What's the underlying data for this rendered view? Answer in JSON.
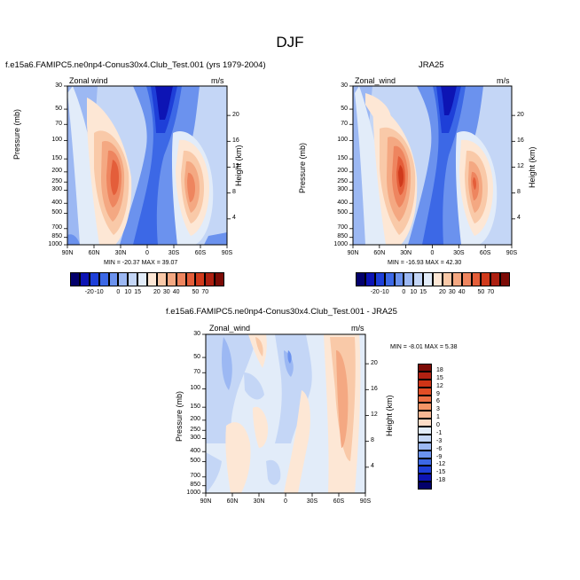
{
  "figure": {
    "title": "DJF"
  },
  "panels": [
    {
      "title": "f.e15a6.FAMIPC5.ne0np4-Conus30x4.Club_Test.001 (yrs 1979-2004)",
      "left_string": "Zonal wind",
      "right_string": "m/s",
      "min_max": "MIN = -20.37   MAX = 39.07"
    },
    {
      "title": "JRA25",
      "left_string": "Zonal_wind",
      "right_string": "m/s",
      "min_max": "MIN = -16.93   MAX = 42.30"
    },
    {
      "title": "f.e15a6.FAMIPC5.ne0np4-Conus30x4.Club_Test.001 - JRA25",
      "left_string": "Zonal_wind",
      "right_string": "m/s",
      "min_max": "MIN =  -8.01   MAX =   5.38"
    }
  ],
  "axes": {
    "ylabel_left": "Pressure (mb)",
    "ylabel_right": "Height (km)",
    "pressure_ticks": [
      "30",
      "50",
      "70",
      "100",
      "150",
      "200",
      "250",
      "300",
      "400",
      "500",
      "700",
      "850",
      "1000"
    ],
    "height_ticks": [
      "20",
      "16",
      "12",
      "8",
      "4"
    ],
    "lat_ticks": [
      "90N",
      "60N",
      "30N",
      "0",
      "30S",
      "60S",
      "90S"
    ]
  },
  "colorbar_top": {
    "labels": [
      "-20",
      "-10",
      "0",
      "10",
      "15",
      "20",
      "30",
      "40",
      "50",
      "70"
    ],
    "colors": [
      "#03006b",
      "#0d14b4",
      "#1e3fd8",
      "#3c68e6",
      "#6b92ee",
      "#9cb8f3",
      "#c4d6f6",
      "#e2ecf9",
      "#fde7d5",
      "#f9c9a8",
      "#f4a882",
      "#ee855f",
      "#e45e3a",
      "#d03a1c",
      "#ad2011",
      "#7c0b06"
    ]
  },
  "colorbar_diff": {
    "labels": [
      "18",
      "15",
      "12",
      "9",
      "6",
      "3",
      "1",
      "0",
      "-1",
      "-3",
      "-6",
      "-9",
      "-12",
      "-15",
      "-18"
    ],
    "colors": [
      "#7c0b06",
      "#b12112",
      "#cf3416",
      "#e14d25",
      "#ec6f44",
      "#f39466",
      "#f7b793",
      "#fcdcc6",
      "#e2ecf9",
      "#c4d6f6",
      "#9cb8f3",
      "#6b92ee",
      "#3c68e6",
      "#1e3fd8",
      "#0d14b4",
      "#03006b"
    ]
  },
  "chart_data": [
    {
      "type": "heatmap",
      "title": "f.e15a6.FAMIPC5.ne0np4-Conus30x4.Club_Test.001 (yrs 1979-2004)",
      "variable": "Zonal wind",
      "units": "m/s",
      "x": "latitude, 90N to 90S",
      "y": "pressure (mb), 1000 to 30",
      "features": [
        {
          "feature": "westerly jet core",
          "lat": "30N",
          "pressure_mb": 200,
          "max_ms": 39.07
        },
        {
          "feature": "westerly jet core",
          "lat": "45S",
          "pressure_mb": 250,
          "approx_ms": 30
        },
        {
          "feature": "easterly minimum",
          "lat": "10N",
          "pressure_mb": 30,
          "min_ms": -20.37
        }
      ]
    },
    {
      "type": "heatmap",
      "title": "JRA25",
      "variable": "Zonal_wind",
      "units": "m/s",
      "features": [
        {
          "feature": "westerly jet core",
          "lat": "30N",
          "pressure_mb": 200,
          "max_ms": 42.3
        },
        {
          "feature": "westerly jet core",
          "lat": "45S",
          "pressure_mb": 250,
          "approx_ms": 30
        },
        {
          "feature": "easterly minimum",
          "lat": "10N",
          "pressure_mb": 30,
          "min_ms": -16.93
        }
      ]
    },
    {
      "type": "heatmap",
      "title": "f.e15a6.FAMIPC5.ne0np4-Conus30x4.Club_Test.001 - JRA25",
      "variable": "Zonal_wind",
      "units": "m/s",
      "features": [
        {
          "feature": "positive difference band",
          "lat": "50S-60S",
          "pressure_mb": "30-700",
          "approx_ms": 5
        },
        {
          "feature": "negative difference",
          "lat": "60N-20N",
          "pressure_mb": "50-200",
          "approx_ms": -6
        },
        {
          "feature": "minimum",
          "min_ms": -8.01
        },
        {
          "feature": "maximum",
          "max_ms": 5.38
        }
      ]
    }
  ]
}
